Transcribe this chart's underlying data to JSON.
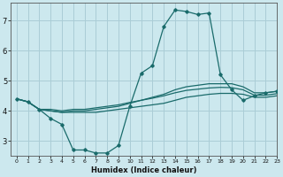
{
  "xlabel": "Humidex (Indice chaleur)",
  "background_color": "#cce8ee",
  "grid_color": "#aacdd6",
  "line_color": "#1a6b6b",
  "xlim": [
    -0.5,
    23
  ],
  "ylim": [
    2.5,
    7.6
  ],
  "yticks": [
    3,
    4,
    5,
    6,
    7
  ],
  "xticks": [
    0,
    1,
    2,
    3,
    4,
    5,
    6,
    7,
    8,
    9,
    10,
    11,
    12,
    13,
    14,
    15,
    16,
    17,
    18,
    19,
    20,
    21,
    22,
    23
  ],
  "series_main": [
    4.4,
    4.3,
    4.05,
    3.75,
    3.55,
    2.7,
    2.7,
    2.6,
    2.6,
    2.85,
    4.15,
    5.25,
    5.5,
    6.8,
    7.35,
    7.3,
    7.2,
    7.25,
    5.2,
    4.7,
    4.35,
    4.5,
    4.6,
    4.65
  ],
  "series_flat1": [
    4.4,
    4.3,
    4.05,
    4.0,
    3.95,
    3.95,
    3.95,
    3.95,
    4.0,
    4.05,
    4.1,
    4.15,
    4.2,
    4.25,
    4.35,
    4.45,
    4.5,
    4.55,
    4.58,
    4.58,
    4.55,
    4.45,
    4.45,
    4.5
  ],
  "series_flat2": [
    4.4,
    4.3,
    4.05,
    4.0,
    3.95,
    4.0,
    4.0,
    4.05,
    4.1,
    4.15,
    4.25,
    4.35,
    4.45,
    4.55,
    4.7,
    4.8,
    4.85,
    4.9,
    4.9,
    4.9,
    4.8,
    4.6,
    4.6,
    4.65
  ],
  "series_flat3": [
    4.4,
    4.3,
    4.05,
    4.05,
    4.0,
    4.05,
    4.05,
    4.1,
    4.15,
    4.2,
    4.28,
    4.35,
    4.42,
    4.5,
    4.6,
    4.68,
    4.72,
    4.76,
    4.78,
    4.77,
    4.7,
    4.52,
    4.52,
    4.57
  ]
}
